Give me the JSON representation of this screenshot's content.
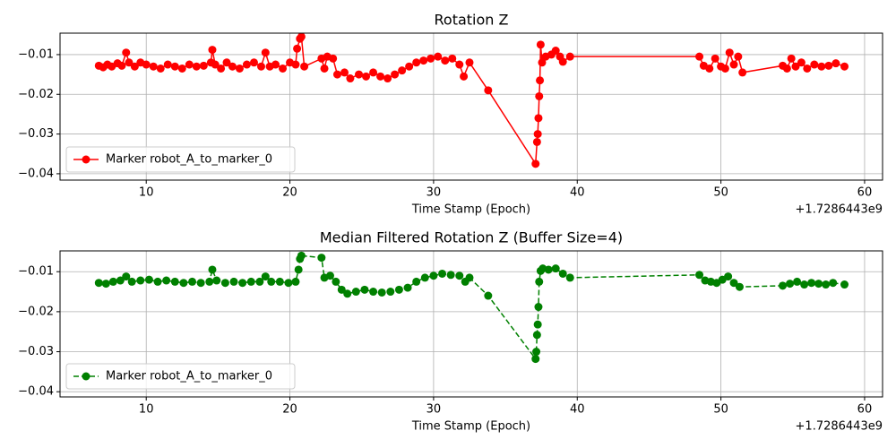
{
  "chart_data": [
    {
      "type": "line",
      "title": "Rotation Z",
      "x_label": "Time Stamp (Epoch)",
      "offset_label": "+1.7286443e9",
      "xlim": [
        4.0,
        61.25
      ],
      "ylim": [
        -0.0416,
        -0.0046
      ],
      "xticks": [
        10,
        20,
        30,
        40,
        50,
        60
      ],
      "yticks": [
        {
          "value": -0.01,
          "label": "−0.01"
        },
        {
          "value": -0.02,
          "label": "−0.02"
        },
        {
          "value": -0.03,
          "label": "−0.03"
        },
        {
          "value": -0.04,
          "label": "−0.04"
        }
      ],
      "grid": true,
      "legend": "lower left",
      "series": [
        {
          "name": "Marker robot_A_to_marker_0",
          "color": "#ff0000",
          "linestyle": "solid",
          "x": [
            6.7,
            7.0,
            7.3,
            7.6,
            8.0,
            8.3,
            8.6,
            8.8,
            9.2,
            9.6,
            10.0,
            10.5,
            11.0,
            11.5,
            12.0,
            12.5,
            13.0,
            13.5,
            14.0,
            14.5,
            14.6,
            14.8,
            15.2,
            15.6,
            16.0,
            16.5,
            17.0,
            17.5,
            18.0,
            18.3,
            18.6,
            19.0,
            19.5,
            20.0,
            20.4,
            20.5,
            20.7,
            20.8,
            21.0,
            22.2,
            22.4,
            22.6,
            23.0,
            23.3,
            23.8,
            24.2,
            24.8,
            25.3,
            25.8,
            26.3,
            26.8,
            27.3,
            27.8,
            28.3,
            28.8,
            29.3,
            29.8,
            30.3,
            30.8,
            31.3,
            31.8,
            32.1,
            32.5,
            33.8,
            37.1,
            37.2,
            37.25,
            37.3,
            37.35,
            37.4,
            37.45,
            37.55,
            37.8,
            38.2,
            38.5,
            38.8,
            39.0,
            39.5,
            48.5,
            48.8,
            49.2,
            49.6,
            50.0,
            50.3,
            50.6,
            50.9,
            51.2,
            51.5,
            54.3,
            54.6,
            54.9,
            55.2,
            55.6,
            56.0,
            56.5,
            57.0,
            57.5,
            58.0,
            58.6
          ],
          "values": [
            -0.0128,
            -0.0132,
            -0.0125,
            -0.013,
            -0.0122,
            -0.0128,
            -0.0095,
            -0.012,
            -0.013,
            -0.012,
            -0.0125,
            -0.013,
            -0.0135,
            -0.0125,
            -0.013,
            -0.0135,
            -0.0125,
            -0.013,
            -0.0128,
            -0.012,
            -0.0088,
            -0.0125,
            -0.0135,
            -0.012,
            -0.013,
            -0.0135,
            -0.0125,
            -0.012,
            -0.013,
            -0.0095,
            -0.013,
            -0.0125,
            -0.0135,
            -0.012,
            -0.0125,
            -0.0085,
            -0.006,
            -0.0055,
            -0.013,
            -0.011,
            -0.0135,
            -0.0105,
            -0.011,
            -0.015,
            -0.0145,
            -0.016,
            -0.015,
            -0.0155,
            -0.0145,
            -0.0155,
            -0.016,
            -0.015,
            -0.014,
            -0.013,
            -0.012,
            -0.0115,
            -0.011,
            -0.0105,
            -0.0115,
            -0.011,
            -0.0125,
            -0.0155,
            -0.012,
            -0.019,
            -0.0375,
            -0.032,
            -0.03,
            -0.026,
            -0.0205,
            -0.0165,
            -0.0075,
            -0.012,
            -0.0105,
            -0.01,
            -0.009,
            -0.0105,
            -0.0118,
            -0.0105,
            -0.0105,
            -0.0128,
            -0.0135,
            -0.011,
            -0.013,
            -0.0135,
            -0.0095,
            -0.0125,
            -0.0105,
            -0.0145,
            -0.0128,
            -0.0135,
            -0.011,
            -0.013,
            -0.012,
            -0.0135,
            -0.0125,
            -0.013,
            -0.0128,
            -0.0122,
            -0.013
          ]
        }
      ]
    },
    {
      "type": "line",
      "title": "Median Filtered Rotation Z (Buffer Size=4)",
      "x_label": "Time Stamp (Epoch)",
      "offset_label": "+1.7286443e9",
      "xlim": [
        4.0,
        61.25
      ],
      "ylim": [
        -0.0413,
        -0.0048
      ],
      "xticks": [
        10,
        20,
        30,
        40,
        50,
        60
      ],
      "yticks": [
        {
          "value": -0.01,
          "label": "−0.01"
        },
        {
          "value": -0.02,
          "label": "−0.02"
        },
        {
          "value": -0.03,
          "label": "−0.03"
        },
        {
          "value": -0.04,
          "label": "−0.04"
        }
      ],
      "grid": true,
      "legend": "lower left",
      "series": [
        {
          "name": "Marker robot_A_to_marker_0",
          "color": "#008000",
          "linestyle": "dashed",
          "x": [
            6.7,
            7.2,
            7.7,
            8.2,
            8.6,
            9.0,
            9.6,
            10.2,
            10.8,
            11.4,
            12.0,
            12.6,
            13.2,
            13.8,
            14.4,
            14.6,
            14.9,
            15.5,
            16.1,
            16.7,
            17.3,
            17.9,
            18.3,
            18.7,
            19.3,
            19.9,
            20.4,
            20.6,
            20.7,
            20.8,
            22.2,
            22.4,
            22.8,
            23.2,
            23.6,
            24.0,
            24.6,
            25.2,
            25.8,
            26.4,
            27.0,
            27.6,
            28.2,
            28.8,
            29.4,
            30.0,
            30.6,
            31.2,
            31.8,
            32.2,
            32.5,
            33.8,
            37.1,
            37.15,
            37.2,
            37.25,
            37.3,
            37.35,
            37.45,
            37.6,
            38.0,
            38.5,
            39.0,
            39.5,
            48.5,
            48.9,
            49.3,
            49.7,
            50.1,
            50.5,
            50.9,
            51.3,
            54.3,
            54.8,
            55.3,
            55.8,
            56.3,
            56.8,
            57.3,
            57.8,
            58.6
          ],
          "values": [
            -0.0128,
            -0.013,
            -0.0125,
            -0.0122,
            -0.0112,
            -0.0125,
            -0.0122,
            -0.012,
            -0.0125,
            -0.0122,
            -0.0125,
            -0.0128,
            -0.0125,
            -0.0128,
            -0.0125,
            -0.0095,
            -0.0122,
            -0.0128,
            -0.0125,
            -0.0128,
            -0.0125,
            -0.0125,
            -0.0112,
            -0.0125,
            -0.0125,
            -0.0128,
            -0.0125,
            -0.0095,
            -0.0068,
            -0.006,
            -0.0065,
            -0.0115,
            -0.011,
            -0.0125,
            -0.0145,
            -0.0155,
            -0.015,
            -0.0145,
            -0.015,
            -0.0152,
            -0.015,
            -0.0145,
            -0.014,
            -0.0125,
            -0.0115,
            -0.011,
            -0.0105,
            -0.0108,
            -0.011,
            -0.0125,
            -0.0115,
            -0.016,
            -0.0318,
            -0.03,
            -0.0258,
            -0.0232,
            -0.0188,
            -0.0125,
            -0.0098,
            -0.0092,
            -0.0095,
            -0.0092,
            -0.0105,
            -0.0115,
            -0.0108,
            -0.0122,
            -0.0125,
            -0.0128,
            -0.012,
            -0.0112,
            -0.0128,
            -0.0138,
            -0.0135,
            -0.013,
            -0.0125,
            -0.0132,
            -0.0128,
            -0.013,
            -0.0132,
            -0.0128,
            -0.0132
          ]
        }
      ]
    }
  ]
}
